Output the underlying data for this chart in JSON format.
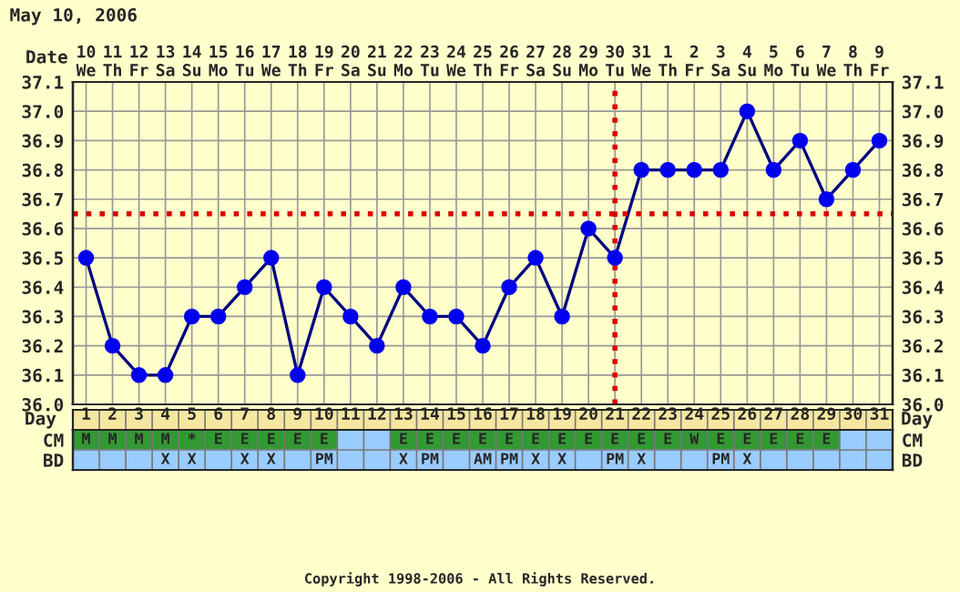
{
  "chart_data": [
    {
      "type": "line",
      "title": "May 10, 2006",
      "xlabel": "Day",
      "x2label": "Date",
      "categories": [
        "1",
        "2",
        "3",
        "4",
        "5",
        "6",
        "7",
        "8",
        "9",
        "10",
        "11",
        "12",
        "13",
        "14",
        "15",
        "16",
        "17",
        "18",
        "19",
        "20",
        "21",
        "22",
        "23",
        "24",
        "25",
        "26",
        "27",
        "28",
        "29",
        "30",
        "31"
      ],
      "x2lim": [
        "2006-05-09T12:00",
        "2006-06-09T12:00"
      ],
      "x2ticks": [
        {
          "value": "2006-05-10",
          "label": "10\nWe"
        },
        {
          "value": "2006-05-11",
          "label": "11\nTh"
        },
        {
          "value": "2006-05-12",
          "label": "12\nFr"
        },
        {
          "value": "2006-05-13",
          "label": "13\nSa"
        },
        {
          "value": "2006-05-14",
          "label": "14\nSu"
        },
        {
          "value": "2006-05-15",
          "label": "15\nMo"
        },
        {
          "value": "2006-05-16",
          "label": "16\nTu"
        },
        {
          "value": "2006-05-17",
          "label": "17\nWe"
        },
        {
          "value": "2006-05-18",
          "label": "18\nTh"
        },
        {
          "value": "2006-05-19",
          "label": "19\nFr"
        },
        {
          "value": "2006-05-20",
          "label": "20\nSa"
        },
        {
          "value": "2006-05-21",
          "label": "21\nSu"
        },
        {
          "value": "2006-05-22",
          "label": "22\nMo"
        },
        {
          "value": "2006-05-23",
          "label": "23\nTu"
        },
        {
          "value": "2006-05-24",
          "label": "24\nWe"
        },
        {
          "value": "2006-05-25",
          "label": "25\nTh"
        },
        {
          "value": "2006-05-26",
          "label": "26\nFr"
        },
        {
          "value": "2006-05-27",
          "label": "27\nSa"
        },
        {
          "value": "2006-05-28",
          "label": "28\nSu"
        },
        {
          "value": "2006-05-29",
          "label": "29\nMo"
        },
        {
          "value": "2006-05-30",
          "label": "30\nTu"
        },
        {
          "value": "2006-05-31",
          "label": "31\nWe"
        },
        {
          "value": "2006-06-01",
          "label": "1\nTh"
        },
        {
          "value": "2006-06-02",
          "label": "2\nFr"
        },
        {
          "value": "2006-06-03",
          "label": "3\nSa"
        },
        {
          "value": "2006-06-04",
          "label": "4\nSu"
        },
        {
          "value": "2006-06-05",
          "label": "5\nMo"
        },
        {
          "value": "2006-06-06",
          "label": "6\nTu"
        },
        {
          "value": "2006-06-07",
          "label": "7\nWe"
        },
        {
          "value": "2006-06-08",
          "label": "8\nTh"
        },
        {
          "value": "2006-06-09",
          "label": "9\nFr"
        }
      ],
      "series": [
        {
          "color": "#0000ee",
          "values": [
            36.5,
            36.2,
            36.1,
            36.1,
            36.3,
            36.3,
            36.4,
            36.5,
            36.1,
            36.4,
            36.3,
            36.2,
            36.4,
            36.3,
            36.3,
            36.2,
            36.4,
            36.5,
            36.3,
            36.6,
            36.5,
            36.8,
            36.8,
            36.8,
            36.8,
            37.0,
            36.8,
            36.9,
            36.7,
            36.8,
            36.9
          ]
        }
      ],
      "ylim": [
        36.0,
        37.1
      ],
      "yticks": [
        {
          "value": 36.0,
          "label": "36.0"
        },
        {
          "value": 36.1,
          "label": "36.1"
        },
        {
          "value": 36.2,
          "label": "36.2"
        },
        {
          "value": 36.3,
          "label": "36.3"
        },
        {
          "value": 36.4,
          "label": "36.4"
        },
        {
          "value": 36.5,
          "label": "36.5"
        },
        {
          "value": 36.6,
          "label": "36.6"
        },
        {
          "value": 36.7,
          "label": "36.7"
        },
        {
          "value": 36.8,
          "label": "36.8"
        },
        {
          "value": 36.9,
          "label": "36.9"
        },
        {
          "value": 37.0,
          "label": "37.0"
        },
        {
          "value": 37.1,
          "label": "37.1"
        }
      ],
      "y2lim": [
        36.0,
        37.1
      ],
      "y2ticks": [
        {
          "value": 36.0,
          "label": "36.0"
        },
        {
          "value": 36.1,
          "label": "36.1"
        },
        {
          "value": 36.2,
          "label": "36.2"
        },
        {
          "value": 36.3,
          "label": "36.3"
        },
        {
          "value": 36.4,
          "label": "36.4"
        },
        {
          "value": 36.5,
          "label": "36.5"
        },
        {
          "value": 36.6,
          "label": "36.6"
        },
        {
          "value": 36.7,
          "label": "36.7"
        },
        {
          "value": 36.8,
          "label": "36.8"
        },
        {
          "value": 36.9,
          "label": "36.9"
        },
        {
          "value": 37.0,
          "label": "37.0"
        },
        {
          "value": 37.1,
          "label": "37.1"
        }
      ],
      "ref_lines": [
        {
          "axis": "y",
          "value": 36.65,
          "color": "#dd0000",
          "line_style": "dotted"
        },
        {
          "axis": "x",
          "value": "21",
          "color": "#dd0000",
          "line_style": "dotted"
        }
      ],
      "grid": true,
      "marker": "circle",
      "line_style": "solid",
      "annotations": [
        "Copyright 1998-2006 - All Rights Reserved."
      ]
    },
    {
      "type": "heatmap",
      "categories": [
        null,
        null,
        null,
        null,
        null,
        null,
        null,
        null,
        null,
        null,
        null,
        null,
        null,
        null,
        null,
        null,
        null,
        null,
        null,
        null,
        null,
        null,
        null,
        null,
        null,
        null,
        null,
        null,
        null,
        null,
        null
      ],
      "y_categories": [
        "CM",
        "BD"
      ],
      "y2_categories": [
        "CM",
        "BD"
      ],
      "cells": [
        [
          null,
          null,
          null,
          null,
          null,
          null,
          null,
          null,
          null,
          null,
          null,
          null,
          null,
          null,
          null,
          null,
          null,
          null,
          null,
          null,
          null,
          null,
          null,
          null,
          null,
          null,
          null,
          null,
          null,
          null,
          null
        ],
        [
          null,
          null,
          null,
          null,
          null,
          null,
          null,
          null,
          null,
          null,
          null,
          null,
          null,
          null,
          null,
          null,
          null,
          null,
          null,
          null,
          null,
          null,
          null,
          null,
          null,
          null,
          null,
          null,
          null,
          null,
          null
        ]
      ],
      "cell_labels": [
        [
          "M",
          "M",
          "M",
          "M",
          "*",
          "E",
          "E",
          "E",
          "E",
          "E",
          null,
          null,
          "E",
          "E",
          "E",
          "E",
          "E",
          "E",
          "E",
          "E",
          "E",
          "E",
          "E",
          "W",
          "E",
          "E",
          "E",
          "E",
          "E",
          null,
          null
        ],
        [
          null,
          null,
          null,
          "X",
          "X",
          null,
          "X",
          "X",
          null,
          "PM",
          null,
          null,
          "X",
          "PM",
          null,
          "AM",
          "PM",
          "X",
          "X",
          null,
          "PM",
          "X",
          null,
          null,
          "PM",
          "X",
          null,
          null,
          null,
          null,
          null
        ]
      ]
    }
  ]
}
